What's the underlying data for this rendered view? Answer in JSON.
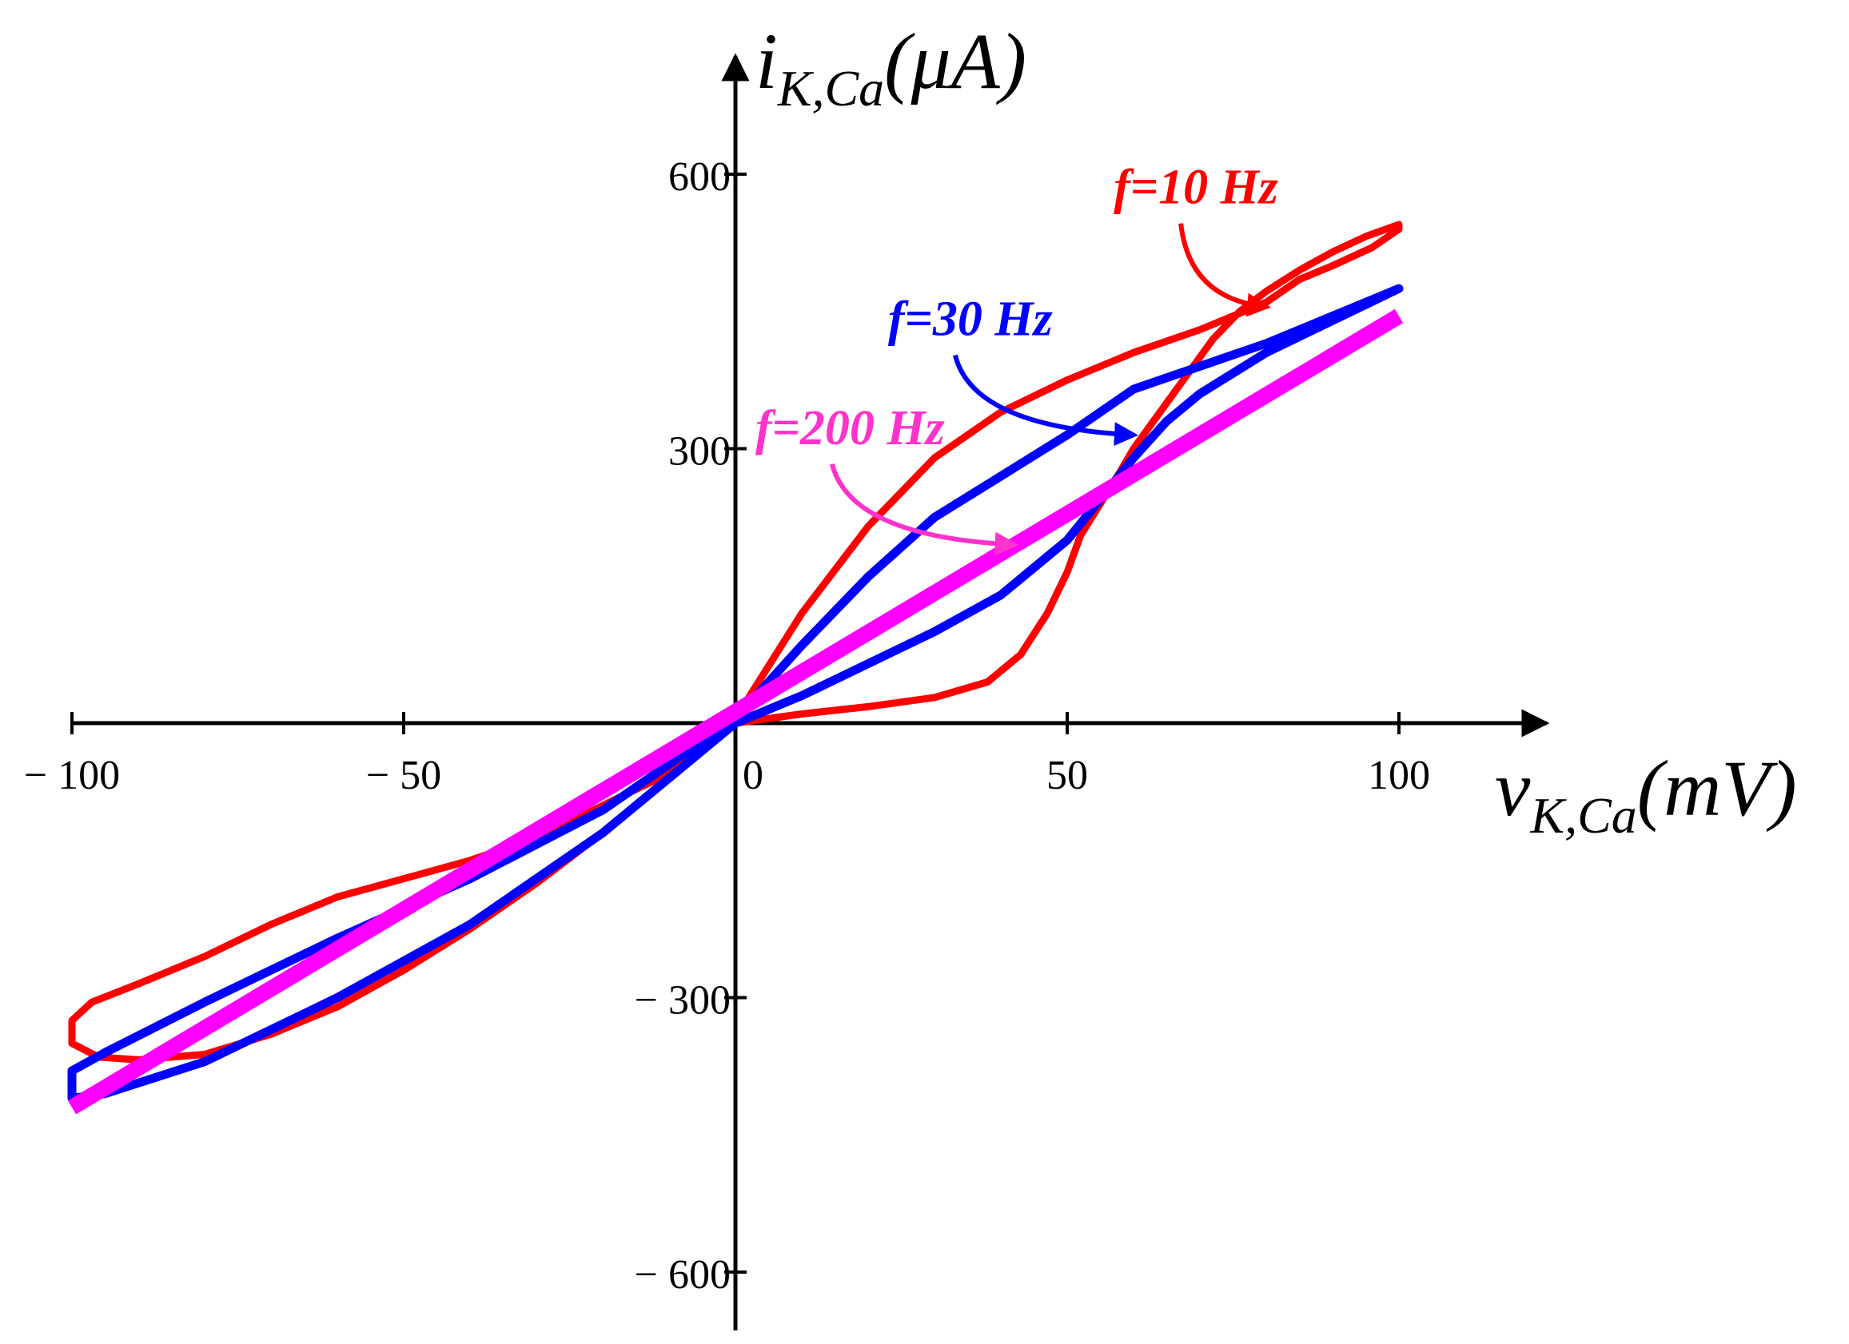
{
  "chart_data": {
    "type": "line",
    "title": "",
    "xlabel": {
      "main": "v",
      "sub": "K,Ca",
      "unit": "(mV)"
    },
    "ylabel": {
      "main": "i",
      "sub": "K,Ca",
      "unit": "(μA)"
    },
    "xlim": [
      -100,
      100
    ],
    "ylim": [
      -600,
      600
    ],
    "x_ticks": [
      -100,
      -50,
      0,
      50,
      100
    ],
    "x_tick_labels": [
      "− 100",
      "− 50",
      "0",
      "50",
      "100"
    ],
    "y_ticks": [
      -600,
      -300,
      300,
      600
    ],
    "y_tick_labels": [
      "− 600",
      "− 300",
      "300",
      "600"
    ],
    "grid": false,
    "series": [
      {
        "name": "f=10 Hz",
        "color": "#ff0000",
        "points": [
          [
            0,
            0
          ],
          [
            10,
            10
          ],
          [
            20,
            18
          ],
          [
            30,
            28
          ],
          [
            38,
            45
          ],
          [
            43,
            75
          ],
          [
            47,
            120
          ],
          [
            50,
            165
          ],
          [
            52,
            205
          ],
          [
            55,
            240
          ],
          [
            58,
            275
          ],
          [
            60,
            300
          ],
          [
            64,
            340
          ],
          [
            68,
            380
          ],
          [
            72,
            420
          ],
          [
            76,
            450
          ],
          [
            80,
            472
          ],
          [
            85,
            495
          ],
          [
            90,
            515
          ],
          [
            95,
            532
          ],
          [
            100,
            545
          ],
          [
            100,
            540
          ],
          [
            96,
            520
          ],
          [
            90,
            500
          ],
          [
            85,
            485
          ],
          [
            80,
            460
          ],
          [
            70,
            430
          ],
          [
            60,
            405
          ],
          [
            50,
            375
          ],
          [
            40,
            340
          ],
          [
            30,
            290
          ],
          [
            20,
            215
          ],
          [
            10,
            120
          ],
          [
            0,
            5
          ],
          [
            -10,
            -55
          ],
          [
            -20,
            -90
          ],
          [
            -30,
            -125
          ],
          [
            -40,
            -150
          ],
          [
            -50,
            -170
          ],
          [
            -60,
            -190
          ],
          [
            -70,
            -220
          ],
          [
            -80,
            -255
          ],
          [
            -90,
            -285
          ],
          [
            -97,
            -305
          ],
          [
            -100,
            -325
          ],
          [
            -100,
            -350
          ],
          [
            -96,
            -365
          ],
          [
            -90,
            -368
          ],
          [
            -80,
            -362
          ],
          [
            -70,
            -340
          ],
          [
            -60,
            -310
          ],
          [
            -50,
            -270
          ],
          [
            -40,
            -225
          ],
          [
            -30,
            -175
          ],
          [
            -20,
            -120
          ],
          [
            -10,
            -60
          ],
          [
            0,
            0
          ]
        ]
      },
      {
        "name": "f=30 Hz",
        "color": "#0000ff",
        "points": [
          [
            0,
            0
          ],
          [
            10,
            30
          ],
          [
            20,
            65
          ],
          [
            30,
            100
          ],
          [
            40,
            140
          ],
          [
            50,
            200
          ],
          [
            55,
            245
          ],
          [
            60,
            290
          ],
          [
            65,
            330
          ],
          [
            70,
            360
          ],
          [
            80,
            405
          ],
          [
            90,
            440
          ],
          [
            100,
            475
          ],
          [
            90,
            445
          ],
          [
            80,
            415
          ],
          [
            70,
            390
          ],
          [
            60,
            365
          ],
          [
            50,
            315
          ],
          [
            40,
            270
          ],
          [
            30,
            225
          ],
          [
            20,
            160
          ],
          [
            10,
            85
          ],
          [
            0,
            5
          ],
          [
            -20,
            -95
          ],
          [
            -40,
            -170
          ],
          [
            -60,
            -235
          ],
          [
            -80,
            -305
          ],
          [
            -95,
            -360
          ],
          [
            -100,
            -380
          ],
          [
            -100,
            -410
          ],
          [
            -95,
            -405
          ],
          [
            -80,
            -370
          ],
          [
            -60,
            -300
          ],
          [
            -40,
            -220
          ],
          [
            -20,
            -120
          ],
          [
            0,
            0
          ]
        ]
      },
      {
        "name": "f=200 Hz",
        "color": "#ff00ff",
        "points": [
          [
            -100,
            -420
          ],
          [
            100,
            445
          ]
        ]
      }
    ],
    "annotations": [
      {
        "text": "f=10 Hz",
        "color": "#ff0000",
        "x": 57,
        "y": 568,
        "arrow_to": [
          80,
          455
        ]
      },
      {
        "text": "f=30 Hz",
        "color": "#0000ff",
        "x": 23,
        "y": 424,
        "arrow_to": [
          60,
          315
        ]
      },
      {
        "text": "f=200 Hz",
        "color": "#ff33cc",
        "x": 3,
        "y": 305,
        "arrow_to": [
          42,
          195
        ]
      }
    ]
  }
}
